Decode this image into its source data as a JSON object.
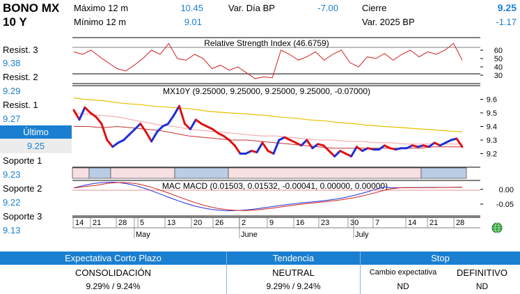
{
  "header": {
    "title_line1": "BONO MX",
    "title_line2": "10 Y",
    "max12_label": "Máximo 12 m",
    "max12_value": "10.45",
    "min12_label": "Mínimo 12 m",
    "min12_value": "9.01",
    "var_dia_label": "Var. Día BP",
    "var_dia_value": "-7.00",
    "cierre_label": "Cierre",
    "cierre_value": "9.25",
    "var2025_label": "Var. 2025 BP",
    "var2025_value": "-1.17"
  },
  "sidebar": {
    "resist3_label": "Resist. 3",
    "resist3_value": "9.38",
    "resist2_label": "Resist. 2",
    "resist2_value": "9.29",
    "resist1_label": "Resist. 1",
    "resist1_value": "9.27",
    "ultimo_label": "Último",
    "ultimo_value": "9.25",
    "soporte1_label": "Soporte 1",
    "soporte1_value": "9.23",
    "soporte2_label": "Soporte 2",
    "soporte2_value": "9.22",
    "soporte3_label": "Soporte 3",
    "soporte3_value": "9.13"
  },
  "chart": {
    "rsi_title": "Relative Strength Index (46.6759)",
    "main_title": "MX10Y (9.25000, 9.25000, 9.25000, 9.25000, -0.07000)",
    "macd_title": "MAC MACD (0.01503, 0.01532, -0.00041, 0.00000, 0.00000)",
    "rsi_ticks": [
      "60",
      "50",
      "40",
      "30"
    ],
    "price_ticks": [
      "9.6",
      "9.5",
      "9.4",
      "9.3",
      "9.2"
    ],
    "macd_ticks": [
      "0.00",
      "-0.05"
    ],
    "day_ticks": [
      "14",
      "21",
      "28",
      "5",
      "13",
      "20",
      "26",
      "2",
      "9",
      "16",
      "23",
      "30",
      "7",
      "14",
      "21",
      "28"
    ],
    "month_ticks": [
      "May",
      "June",
      "July"
    ],
    "colors": {
      "up": "#1e2ed8",
      "down": "#e01010",
      "ma_long": "#e8c000",
      "ma_mid": "#c03030",
      "ma_pink": "#f0a0a0",
      "shade_pink": "#f7dfe2",
      "shade_blue": "#b9cde6"
    }
  },
  "chart_data": {
    "type": "line",
    "title": "MX10Y (9.25000, 9.25000, 9.25000, 9.25000, -0.07000)",
    "series": [
      {
        "values": [
          9.52,
          9.45,
          9.54,
          9.5,
          9.47,
          9.42,
          9.3,
          9.25,
          9.28,
          9.3,
          9.34,
          9.38,
          9.42,
          9.36,
          9.29,
          9.36,
          9.4,
          9.42,
          9.48,
          9.55,
          9.42,
          9.38,
          9.45,
          9.42,
          9.4,
          9.38,
          9.35,
          9.33,
          9.3,
          9.26,
          9.2,
          9.2,
          9.22,
          9.21,
          9.28,
          9.22,
          9.2,
          9.3,
          9.32,
          9.3,
          9.28,
          9.26,
          9.3,
          9.24,
          9.27,
          9.26,
          9.22,
          9.18,
          9.22,
          9.2,
          9.18,
          9.25,
          9.22,
          9.24,
          9.23,
          9.23,
          9.26,
          9.24,
          9.23,
          9.24,
          9.24,
          9.26,
          9.25,
          9.26,
          9.25,
          9.28,
          9.26,
          9.28,
          9.3,
          9.31,
          9.25
        ]
      },
      {
        "values": [
          9.61,
          9.6,
          9.595,
          9.59,
          9.58,
          9.57,
          9.565,
          9.56,
          9.55,
          9.545,
          9.54,
          9.535,
          9.53,
          9.52,
          9.51,
          9.505,
          9.5,
          9.495,
          9.49,
          9.485,
          9.48,
          9.47,
          9.465,
          9.46,
          9.45,
          9.445,
          9.44,
          9.43,
          9.425,
          9.42,
          9.41,
          9.405,
          9.4,
          9.395,
          9.39,
          9.385,
          9.38,
          9.375,
          9.37,
          9.365,
          9.36
        ]
      },
      {
        "values": [
          9.4,
          9.4,
          9.39,
          9.4,
          9.39,
          9.38,
          9.37,
          9.35,
          9.33,
          9.32,
          9.31,
          9.3,
          9.3,
          9.29,
          9.28,
          9.27,
          9.26,
          9.25,
          9.24,
          9.24,
          9.24,
          9.24,
          9.24,
          9.24,
          9.24,
          9.25,
          9.25,
          9.25
        ]
      },
      {
        "values": [
          9.5,
          9.49,
          9.48,
          9.47,
          9.45,
          9.43,
          9.41,
          9.4,
          9.38,
          9.37,
          9.36,
          9.35,
          9.34,
          9.33,
          9.33,
          9.32,
          9.31,
          9.3,
          9.3,
          9.29,
          9.29,
          9.28,
          9.28,
          9.27,
          9.27,
          9.27,
          9.27,
          9.27
        ]
      }
    ],
    "ylim": [
      9.1,
      9.7
    ],
    "rsi": {
      "title": "Relative Strength Index (46.6759)",
      "ticks": [
        60,
        50,
        40,
        30
      ],
      "values": [
        58,
        55,
        60,
        52,
        45,
        38,
        35,
        42,
        50,
        60,
        55,
        68,
        50,
        48,
        55,
        50,
        38,
        42,
        36,
        40,
        33,
        26,
        28,
        27,
        60,
        55,
        48,
        52,
        58,
        48,
        55,
        60,
        45,
        40,
        52,
        50,
        56,
        48,
        55,
        60,
        52,
        58,
        55,
        60,
        68,
        48
      ],
      "ylim": [
        20,
        75
      ]
    },
    "macd": {
      "title": "MAC MACD (0.01503, 0.01532, -0.00041, 0.00000, 0.00000)",
      "ticks": [
        0.0,
        -0.05
      ],
      "ylim": [
        -0.09,
        0.03
      ]
    },
    "x_tick_labels": [
      "14",
      "21",
      "28",
      "5",
      "13",
      "20",
      "26",
      "2",
      "9",
      "16",
      "23",
      "30",
      "7",
      "14",
      "21",
      "28"
    ],
    "month_labels": [
      "May",
      "June",
      "July"
    ]
  },
  "table": {
    "col1_header": "Expectativa Corto Plazo",
    "col1_value": "CONSOLIDACIÓN",
    "col1_range": "9.29% / 9.24%",
    "col2_header": "Tendencia",
    "col2_value": "NEUTRAL",
    "col2_range": "9.29% / 9.24%",
    "col3_header": "Stop",
    "col3a_label": "Cambio expectativa",
    "col3a_value": "ND",
    "col3b_label": "DEFINITIVO",
    "col3b_value": "ND"
  }
}
